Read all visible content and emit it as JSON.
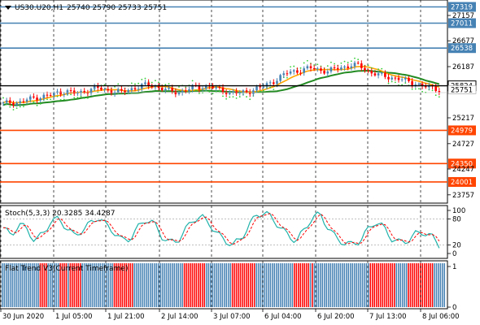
{
  "colors": {
    "background": "#ffffff",
    "grid": "#000000",
    "frame": "#000000",
    "level_blue": "#4682b4",
    "level_red": "#ff4500",
    "ma_green": "#228b22",
    "ma_orange": "#ffa500",
    "psar": "#32cd32",
    "bull_candle": "#4682b4",
    "bear_candle": "#ff0000",
    "stoch_main": "#20b2aa",
    "stoch_signal": "#ff0000",
    "flat_trend_blue": "#4682b4",
    "flat_trend_red": "#ff0000",
    "price_tag_bg": "#ffffff",
    "current_tag_bg": "#ffffff"
  },
  "main": {
    "symbol_text": "US30.U20,H1",
    "ohlc_text": "25740 25790 25733 25751",
    "dropdown_icon": "triangle-down-icon",
    "price_labels": [
      "27319",
      "27157",
      "27011",
      "26677",
      "26538",
      "26187",
      "25824",
      "25751",
      "25217",
      "24979",
      "24727",
      "24350",
      "24247",
      "24001",
      "23757"
    ],
    "levels": [
      {
        "price_text": "27319",
        "color": "#4682b4"
      },
      {
        "price_text": "27011",
        "color": "#4682b4"
      },
      {
        "price_text": "26538",
        "color": "#4682b4"
      },
      {
        "price_text": "24979",
        "color": "#ff4500"
      },
      {
        "price_text": "24350",
        "color": "#ff4500"
      },
      {
        "price_text": "24001",
        "color": "#ff4500"
      }
    ],
    "current_price_label": "25824",
    "bid_label": "25751"
  },
  "stoch": {
    "title": "Stoch(5,3,3) 20.3285 34.4287",
    "scale_labels": [
      "100",
      "80",
      "20",
      "0"
    ]
  },
  "flat_trend": {
    "title": "Flat Trend V3(Current Timeframe)",
    "scale_labels": [
      "1",
      "0"
    ]
  },
  "time_axis": {
    "labels": [
      "30 Jun 2020",
      "1 Jul 05:00",
      "1 Jul 21:00",
      "2 Jul 14:00",
      "3 Jul 07:00",
      "6 Jul 04:00",
      "6 Jul 20:00",
      "7 Jul 13:00",
      "8 Jul 06:00"
    ]
  },
  "chart_data": {
    "type": "candlestick",
    "title": "US30.U20,H1",
    "y_range": [
      23600,
      27450
    ],
    "levels": [
      27319,
      27011,
      26538,
      24979,
      24350,
      24001
    ],
    "close_approx": [
      25480,
      25520,
      25500,
      25560,
      25600,
      25620,
      25650,
      25700,
      25720,
      25680,
      25700,
      25760,
      25780,
      25740,
      25720,
      25700,
      25760,
      25800,
      25840,
      25820,
      25780,
      25720,
      25700,
      25740,
      25790,
      25800,
      25820,
      25760,
      25720,
      25700,
      25680,
      25720,
      25780,
      25820,
      25900,
      26000,
      26080,
      26100,
      26140,
      26160,
      26120,
      26100,
      26150,
      26180,
      26220,
      26200,
      26100,
      26050,
      26000,
      25980,
      25960,
      25900,
      25870,
      25820,
      25780,
      25751
    ],
    "stoch_k_approx": [
      60,
      40,
      70,
      55,
      30,
      45,
      75,
      80,
      60,
      40,
      55,
      70,
      85,
      65,
      50,
      30,
      35,
      60,
      80,
      70,
      40,
      25,
      30,
      55,
      80,
      85,
      70,
      45,
      30,
      20,
      35,
      65,
      90,
      95,
      80,
      60,
      40,
      30,
      55,
      85,
      90,
      60,
      35,
      25,
      20,
      30,
      55,
      75,
      60,
      35,
      25,
      30,
      45,
      50,
      40,
      20
    ],
    "stoch_levels": [
      80,
      20
    ],
    "flat_trend_states": "bbbbbbbbbbbbbbbbbbbrrrrbbbbbbrrrrbrrrrrrbbbbbbbbbbbbbbbbrrrrrrrrrrbbbbbbbbbbbbbbbbbbbbbbbbbrrrrrrrrrrrbbbbbbbbbbbbbrrrrrrrrrrrrbbbbbbbbbbbbbbbbbbbrrrrrrrrbrbbbbbbbbbbbbbbbbbbbbbbbbbbbbrrrrrrrrrrrrrbbbbbbrrrrrrrrrrrrrbbbbbb"
  }
}
